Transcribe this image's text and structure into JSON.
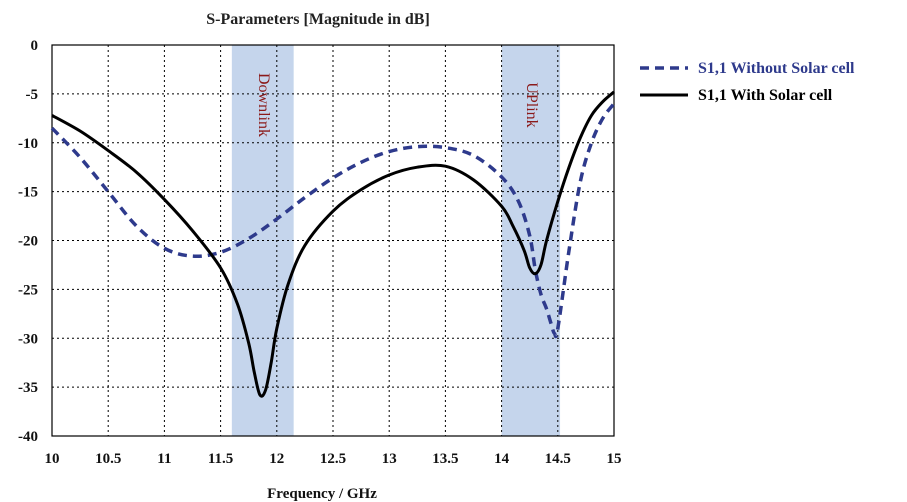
{
  "chart_data": {
    "type": "line",
    "title": "S-Parameters [Magnitude in dB]",
    "xlabel": "Frequency / GHz",
    "ylabel": "",
    "xlim": [
      10,
      15
    ],
    "ylim": [
      -40,
      0
    ],
    "xticks": [
      "10",
      "10.5",
      "11",
      "11.5",
      "12",
      "12.5",
      "13",
      "13.5",
      "14",
      "14.5",
      "15"
    ],
    "yticks": [
      "0",
      "-5",
      "-10",
      "-15",
      "-20",
      "-25",
      "-30",
      "-35",
      "-40"
    ],
    "grid": true,
    "legend_position": "right",
    "bands": [
      {
        "label": "Downlink",
        "x_start": 11.6,
        "x_end": 12.15,
        "color": "#c5d5ec"
      },
      {
        "label": "UPlink",
        "x_start": 14.0,
        "x_end": 14.52,
        "color": "#c5d5ec"
      }
    ],
    "series": [
      {
        "name": "S1,1 Without Solar cell",
        "color": "#2e3a8c",
        "style": "dashed",
        "x": [
          10,
          10.25,
          10.5,
          10.75,
          11,
          11.25,
          11.5,
          11.75,
          12,
          12.25,
          12.5,
          12.75,
          13,
          13.25,
          13.5,
          13.75,
          14,
          14.15,
          14.25,
          14.3,
          14.35,
          14.4,
          14.44,
          14.47,
          14.5,
          14.6,
          14.7,
          14.8,
          14.9,
          15
        ],
        "y": [
          -8.5,
          -11.5,
          -15,
          -18.5,
          -20.8,
          -21.6,
          -21.2,
          -19.8,
          -17.8,
          -15.6,
          -13.6,
          -12.0,
          -10.9,
          -10.4,
          -10.5,
          -11.3,
          -13.5,
          -16.0,
          -19.5,
          -23,
          -25.5,
          -27,
          -28.5,
          -29.5,
          -29,
          -21,
          -14,
          -10,
          -7.5,
          -6
        ]
      },
      {
        "name": "S1,1 With Solar cell",
        "color": "#000000",
        "style": "solid",
        "x": [
          10,
          10.25,
          10.5,
          10.75,
          11,
          11.25,
          11.5,
          11.65,
          11.75,
          11.8,
          11.85,
          11.9,
          11.95,
          12,
          12.1,
          12.25,
          12.5,
          12.75,
          13,
          13.25,
          13.5,
          13.75,
          14,
          14.1,
          14.2,
          14.25,
          14.3,
          14.35,
          14.4,
          14.5,
          14.6,
          14.7,
          14.8,
          14.9,
          15
        ],
        "y": [
          -7.2,
          -8.8,
          -10.8,
          -13.0,
          -15.8,
          -19.0,
          -22.8,
          -26.5,
          -30.5,
          -33.5,
          -35.8,
          -35.3,
          -32.5,
          -29,
          -24.5,
          -20.5,
          -17.0,
          -14.8,
          -13.3,
          -12.5,
          -12.4,
          -13.8,
          -16.5,
          -18.5,
          -21.0,
          -22.8,
          -23.4,
          -22.5,
          -20.0,
          -16.0,
          -12.5,
          -9.5,
          -7.2,
          -5.8,
          -4.8
        ]
      }
    ]
  }
}
